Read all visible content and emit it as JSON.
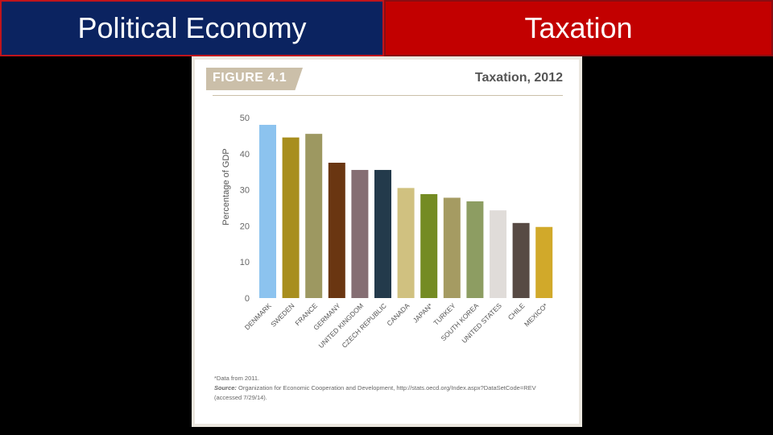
{
  "header": {
    "left_title": "Political Economy",
    "right_title": "Taxation"
  },
  "figure": {
    "label": "FIGURE 4.1",
    "footnote": "*Data from 2011.",
    "source_label": "Source:",
    "source_text": "Organization for Economic Cooperation and Development, http://stats.oecd.org/Index.aspx?DataSetCode=REV (accessed 7/29/14)."
  },
  "chart_data": {
    "type": "bar",
    "title": "Taxation, 2012",
    "ylabel": "Percentage of GDP",
    "xlabel": "",
    "ylim": [
      0,
      50
    ],
    "yticks": [
      0,
      10,
      20,
      30,
      40,
      50
    ],
    "grid": false,
    "categories": [
      "DENMARK",
      "SWEDEN",
      "FRANCE",
      "GERMANY",
      "UNITED KINGDOM",
      "CZECH REPUBLIC",
      "CANADA",
      "JAPAN*",
      "TURKEY",
      "SOUTH KOREA",
      "UNITED STATES",
      "CHILE",
      "MEXICO*"
    ],
    "values": [
      48,
      44.5,
      45.5,
      37.5,
      35.5,
      35.5,
      30.5,
      28.8,
      27.8,
      26.8,
      24.3,
      20.8,
      19.7
    ],
    "colors": [
      "#8cc3ef",
      "#a88e1e",
      "#9d9861",
      "#6a3611",
      "#856e73",
      "#233a4b",
      "#d0c180",
      "#748b23",
      "#a59b62",
      "#8d9d62",
      "#e0dcd9",
      "#574a44",
      "#d1a92a"
    ]
  }
}
